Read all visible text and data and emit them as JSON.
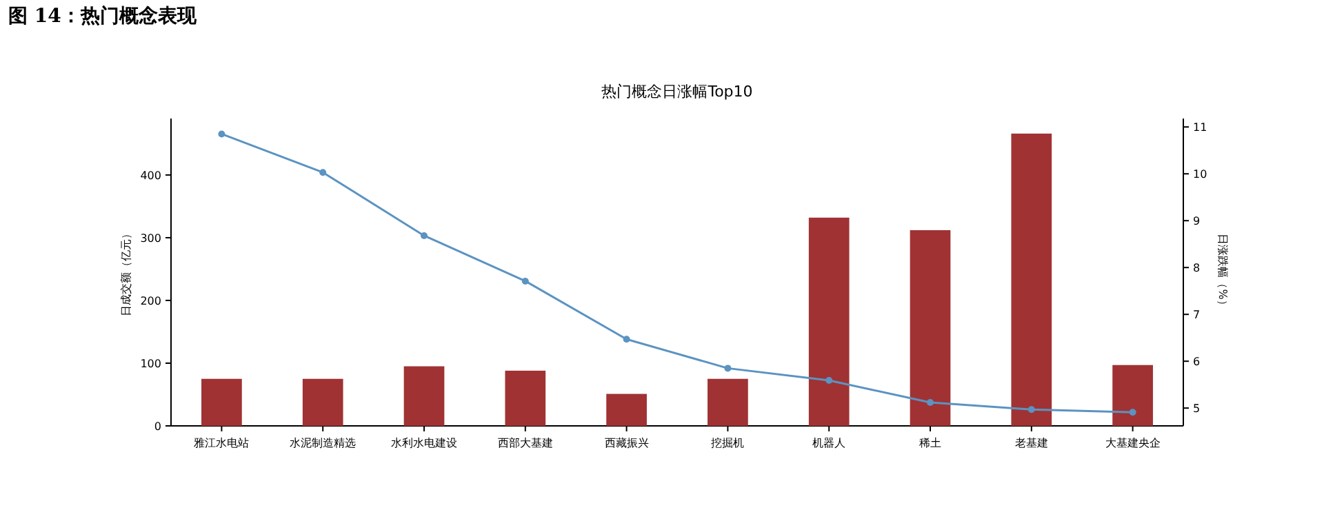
{
  "chart_data": {
    "type": "bar",
    "title": "热门概念日涨幅Top10",
    "annotations": [
      "图 14：热门概念表现"
    ],
    "categories": [
      "雅江水电站",
      "水泥制造精选",
      "水利水电建设",
      "西部大基建",
      "西藏振兴",
      "挖掘机",
      "机器人",
      "稀土",
      "老基建",
      "大基建央企"
    ],
    "series": [
      {
        "color": "#a03234",
        "values": [
          75,
          75,
          95,
          88,
          51,
          75,
          332,
          312,
          466,
          97
        ]
      },
      {
        "type": "line",
        "axis": "y2",
        "color": "#5b93c2",
        "marker": "circle",
        "values": [
          10.85,
          10.03,
          8.68,
          7.71,
          6.47,
          5.85,
          5.59,
          5.12,
          4.97,
          4.91
        ]
      }
    ],
    "ylabel": "日成交额（亿元）",
    "y2label": "日涨跌幅（%）",
    "ylim": [
      0,
      490
    ],
    "yticks": [
      0,
      100,
      200,
      300,
      400
    ],
    "y2lim": [
      4.62,
      11.18
    ],
    "y2ticks": [
      5,
      6,
      7,
      8,
      9,
      10,
      11
    ],
    "grid": false
  }
}
